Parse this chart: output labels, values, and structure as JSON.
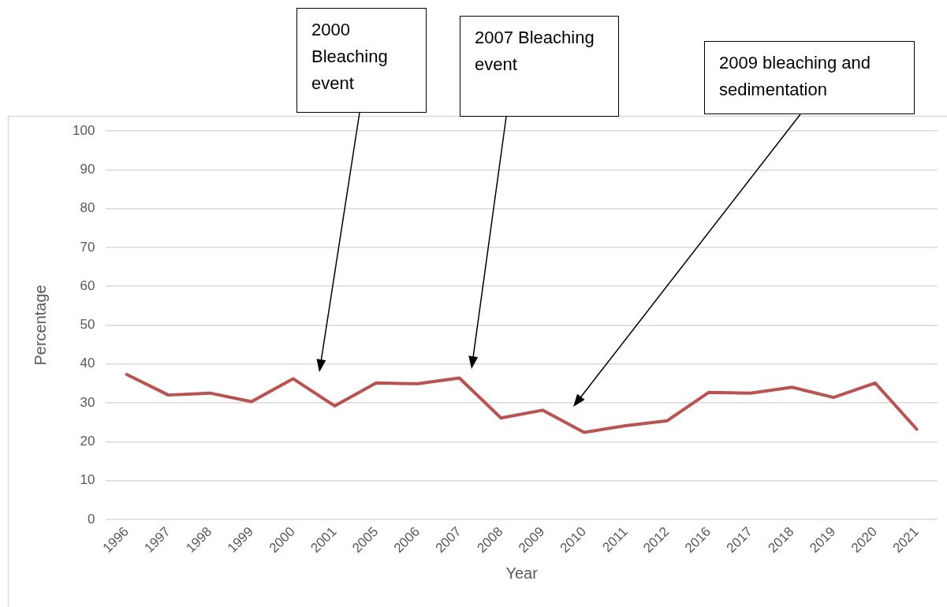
{
  "chart_data": {
    "type": "line",
    "xlabel": "Year",
    "ylabel": "Percentage",
    "categories": [
      "1996",
      "1997",
      "1998",
      "1999",
      "2000",
      "2001",
      "2005",
      "2006",
      "2007",
      "2008",
      "2009",
      "2010",
      "2011",
      "2012",
      "2016",
      "2017",
      "2018",
      "2019",
      "2020",
      "2021"
    ],
    "series": [
      {
        "color": "#c0504d",
        "values": [
          37.3,
          32.0,
          32.5,
          30.3,
          36.2,
          29.2,
          35.1,
          34.9,
          36.4,
          26.1,
          28.1,
          22.4,
          24.1,
          25.4,
          32.7,
          32.5,
          34.0,
          31.4,
          35.1,
          23.2
        ]
      }
    ],
    "ylim": [
      0,
      100
    ],
    "yticks": [
      0,
      10,
      20,
      30,
      40,
      50,
      60,
      70,
      80,
      90,
      100
    ],
    "grid": "y",
    "legend": false,
    "marker": "none",
    "line_style": "solid",
    "annotations": [
      "2000 Bleaching event",
      "2007 Bleaching event",
      "2009 bleaching and sedimentation"
    ]
  }
}
